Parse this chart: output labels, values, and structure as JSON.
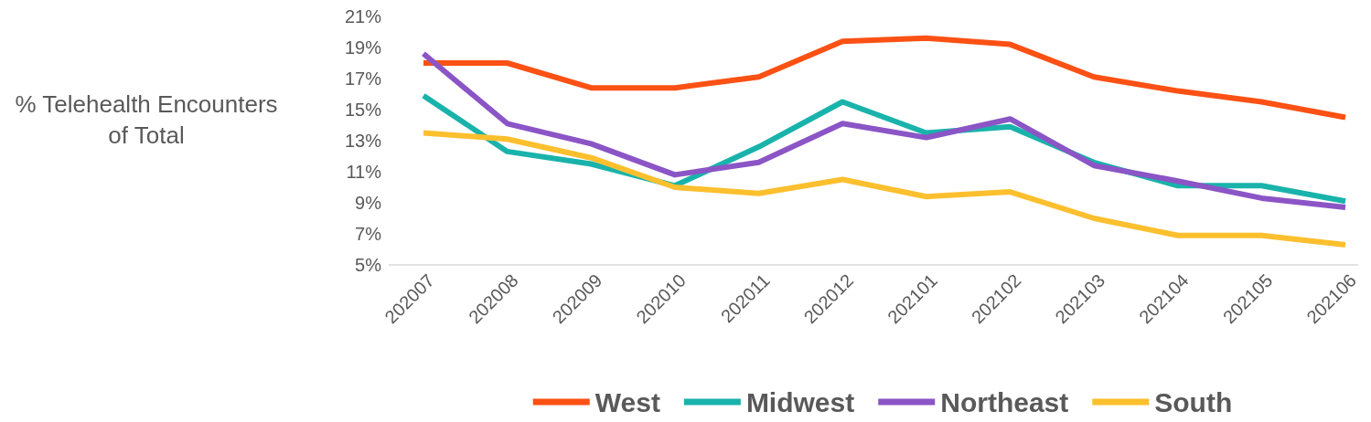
{
  "chart_data": {
    "type": "line",
    "ylabel": "% Telehealth Encounters of Total",
    "categories": [
      "202007",
      "202008",
      "202009",
      "202010",
      "202011",
      "202012",
      "202101",
      "202102",
      "202103",
      "202104",
      "202105",
      "202106"
    ],
    "series": [
      {
        "name": "West",
        "color": "#fc5114",
        "values": [
          18.0,
          18.0,
          16.4,
          16.4,
          17.1,
          19.4,
          19.6,
          19.2,
          17.1,
          16.2,
          15.5,
          14.5
        ]
      },
      {
        "name": "Midwest",
        "color": "#19b3ab",
        "values": [
          15.9,
          12.3,
          11.5,
          10.1,
          12.6,
          15.5,
          13.5,
          13.9,
          11.6,
          10.1,
          10.1,
          9.1
        ]
      },
      {
        "name": "Northeast",
        "color": "#8b55c6",
        "values": [
          18.6,
          14.1,
          12.8,
          10.8,
          11.6,
          14.1,
          13.2,
          14.4,
          11.4,
          10.4,
          9.3,
          8.7
        ]
      },
      {
        "name": "South",
        "color": "#fcbf2e",
        "values": [
          13.5,
          13.1,
          11.9,
          10.0,
          9.6,
          10.5,
          9.4,
          9.7,
          8.0,
          6.9,
          6.9,
          6.3
        ]
      }
    ],
    "ylim": [
      5,
      21
    ],
    "yticks": [
      {
        "value": 5,
        "label": "5%"
      },
      {
        "value": 7,
        "label": "7%"
      },
      {
        "value": 9,
        "label": "9%"
      },
      {
        "value": 11,
        "label": "11%"
      },
      {
        "value": 13,
        "label": "13%"
      },
      {
        "value": 15,
        "label": "15%"
      },
      {
        "value": 17,
        "label": "17%"
      },
      {
        "value": 19,
        "label": "19%"
      },
      {
        "value": 21,
        "label": "21%"
      }
    ],
    "grid": false,
    "legend": "bottom",
    "marker": "none",
    "line_style": "solid"
  }
}
